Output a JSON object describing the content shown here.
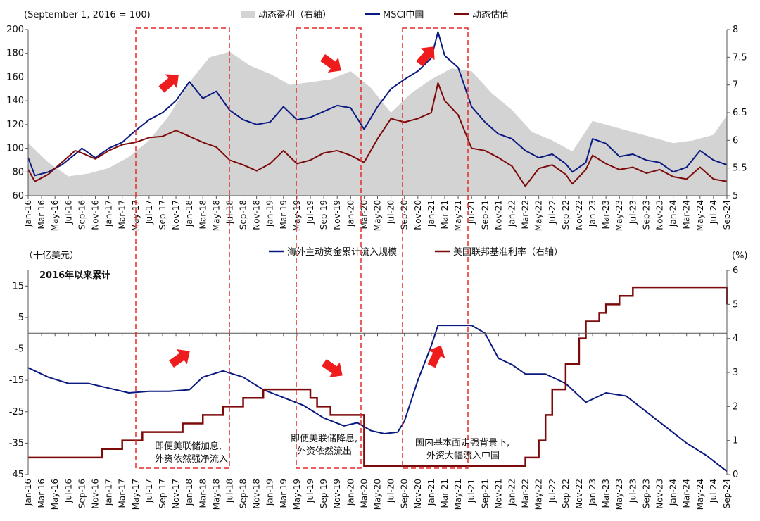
{
  "colors": {
    "earnings_fill": "#d3d3d3",
    "msci_line": "#0b1a80",
    "valuation_line": "#7d0a0a",
    "flow_line": "#0b1a80",
    "rate_line": "#7d0a0a",
    "highlight_box": "#e52a2a",
    "arrow": "#ee1c1c"
  },
  "icons": [
    "arrow-up-right-icon",
    "arrow-down-right-icon"
  ],
  "chart_data": [
    {
      "type": "line",
      "subtitle": "(September 1, 2016 = 100)",
      "legend_position": "top",
      "ylim": [
        60,
        200
      ],
      "y_ticks": [
        60,
        80,
        100,
        120,
        140,
        160,
        180,
        200
      ],
      "y2lim": [
        5,
        8
      ],
      "y2_ticks": [
        5,
        5.5,
        6,
        6.5,
        7,
        7.5,
        8
      ],
      "x_ticks": [
        "Jan-16",
        "Mar-16",
        "May-16",
        "Jul-16",
        "Sep-16",
        "Nov-16",
        "Jan-17",
        "Mar-17",
        "May-17",
        "Jul-17",
        "Sep-17",
        "Nov-17",
        "Jan-18",
        "Mar-18",
        "May-18",
        "Jul-18",
        "Sep-18",
        "Nov-18",
        "Jan-19",
        "Mar-19",
        "May-19",
        "Jul-19",
        "Sep-19",
        "Nov-19",
        "Jan-20",
        "Mar-20",
        "May-20",
        "Jul-20",
        "Sep-20",
        "Nov-20",
        "Jan-21",
        "Mar-21",
        "May-21",
        "Jul-21",
        "Sep-21",
        "Nov-21",
        "Jan-22",
        "Mar-22",
        "May-22",
        "Jul-22",
        "Sep-22",
        "Nov-22",
        "Jan-23",
        "Mar-23",
        "May-23",
        "Jul-23",
        "Sep-23",
        "Nov-23",
        "Jan-24",
        "Mar-24",
        "May-24",
        "Jul-24",
        "Sep-24"
      ],
      "grid": false,
      "series": [
        {
          "name": "动态盈利（右轴）",
          "kind": "area",
          "axis": "right",
          "x": [
            "2016-01",
            "2016-04",
            "2016-07",
            "2016-10",
            "2017-01",
            "2017-04",
            "2017-07",
            "2017-10",
            "2018-01",
            "2018-04",
            "2018-07",
            "2018-10",
            "2019-01",
            "2019-04",
            "2019-07",
            "2019-10",
            "2020-01",
            "2020-04",
            "2020-07",
            "2020-10",
            "2021-01",
            "2021-04",
            "2021-07",
            "2021-10",
            "2022-01",
            "2022-04",
            "2022-07",
            "2022-10",
            "2023-01",
            "2023-04",
            "2023-07",
            "2023-10",
            "2024-01",
            "2024-04",
            "2024-07",
            "2024-09"
          ],
          "values": [
            5.95,
            5.6,
            5.35,
            5.4,
            5.5,
            5.7,
            6.0,
            6.45,
            7.05,
            7.5,
            7.6,
            7.35,
            7.2,
            7.0,
            7.05,
            7.1,
            7.25,
            6.95,
            6.5,
            6.85,
            7.1,
            7.3,
            7.25,
            6.85,
            6.55,
            6.15,
            6.0,
            5.8,
            6.35,
            6.25,
            6.15,
            6.05,
            5.95,
            6.0,
            6.1,
            6.45
          ]
        },
        {
          "name": "MSCI中国",
          "kind": "line",
          "axis": "left",
          "x": [
            "2016-01",
            "2016-02",
            "2016-04",
            "2016-06",
            "2016-08",
            "2016-09",
            "2016-11",
            "2017-01",
            "2017-03",
            "2017-05",
            "2017-07",
            "2017-09",
            "2017-11",
            "2018-01",
            "2018-03",
            "2018-05",
            "2018-07",
            "2018-09",
            "2018-11",
            "2019-01",
            "2019-03",
            "2019-05",
            "2019-07",
            "2019-09",
            "2019-11",
            "2020-01",
            "2020-03",
            "2020-05",
            "2020-07",
            "2020-09",
            "2020-11",
            "2021-01",
            "2021-02",
            "2021-03",
            "2021-05",
            "2021-07",
            "2021-09",
            "2021-11",
            "2022-01",
            "2022-03",
            "2022-05",
            "2022-07",
            "2022-09",
            "2022-10",
            "2022-12",
            "2023-01",
            "2023-03",
            "2023-05",
            "2023-07",
            "2023-09",
            "2023-11",
            "2024-01",
            "2024-03",
            "2024-05",
            "2024-07",
            "2024-09"
          ],
          "values": [
            92,
            77,
            80,
            86,
            95,
            100,
            92,
            100,
            105,
            115,
            124,
            130,
            140,
            156,
            142,
            148,
            132,
            124,
            120,
            122,
            135,
            124,
            126,
            131,
            136,
            134,
            116,
            135,
            150,
            158,
            165,
            176,
            198,
            178,
            168,
            135,
            122,
            112,
            108,
            98,
            92,
            95,
            87,
            80,
            88,
            108,
            104,
            93,
            95,
            90,
            88,
            80,
            84,
            98,
            90,
            86
          ]
        },
        {
          "name": "动态估值",
          "kind": "line",
          "axis": "left",
          "x": [
            "2016-01",
            "2016-02",
            "2016-04",
            "2016-06",
            "2016-08",
            "2016-09",
            "2016-11",
            "2017-01",
            "2017-03",
            "2017-05",
            "2017-07",
            "2017-09",
            "2017-11",
            "2018-01",
            "2018-03",
            "2018-05",
            "2018-07",
            "2018-09",
            "2018-11",
            "2019-01",
            "2019-03",
            "2019-05",
            "2019-07",
            "2019-09",
            "2019-11",
            "2020-01",
            "2020-03",
            "2020-05",
            "2020-07",
            "2020-09",
            "2020-11",
            "2021-01",
            "2021-02",
            "2021-03",
            "2021-05",
            "2021-07",
            "2021-09",
            "2021-11",
            "2022-01",
            "2022-03",
            "2022-05",
            "2022-07",
            "2022-09",
            "2022-10",
            "2022-12",
            "2023-01",
            "2023-03",
            "2023-05",
            "2023-07",
            "2023-09",
            "2023-11",
            "2024-01",
            "2024-03",
            "2024-05",
            "2024-07",
            "2024-09"
          ],
          "values": [
            82,
            72,
            78,
            88,
            98,
            96,
            91,
            98,
            103,
            105,
            109,
            110,
            115,
            110,
            105,
            101,
            90,
            86,
            81,
            87,
            98,
            87,
            90,
            96,
            98,
            94,
            88,
            108,
            125,
            122,
            125,
            130,
            155,
            140,
            128,
            100,
            98,
            92,
            85,
            68,
            83,
            86,
            78,
            70,
            82,
            94,
            87,
            82,
            84,
            79,
            82,
            76,
            74,
            84,
            74,
            72
          ]
        }
      ]
    },
    {
      "type": "line",
      "subtitle": "2016年以来累计",
      "ylabel": "（十亿美元）",
      "y2label": "(%)",
      "legend_position": "top",
      "ylim": [
        -45,
        20
      ],
      "y_ticks": [
        -45,
        -35,
        -25,
        -15,
        -5,
        5,
        15
      ],
      "y2lim": [
        0,
        6
      ],
      "y2_ticks": [
        0,
        1,
        2,
        3,
        4,
        5,
        6
      ],
      "x_ticks": [
        "Jan-16",
        "Mar-16",
        "May-16",
        "Jul-16",
        "Sep-16",
        "Nov-16",
        "Jan-17",
        "Mar-17",
        "May-17",
        "Jul-17",
        "Sep-17",
        "Nov-17",
        "Jan-18",
        "Mar-18",
        "May-18",
        "Jul-18",
        "Sep-18",
        "Nov-18",
        "Jan-19",
        "Mar-19",
        "May-19",
        "Jul-19",
        "Sep-19",
        "Nov-19",
        "Jan-20",
        "Mar-20",
        "May-20",
        "Jul-20",
        "Sep-20",
        "Nov-20",
        "Jan-21",
        "Mar-21",
        "May-21",
        "Jul-21",
        "Sep-21",
        "Nov-21",
        "Jan-22",
        "Mar-22",
        "May-22",
        "Jul-22",
        "Sep-22",
        "Nov-22",
        "Jan-23",
        "Mar-23",
        "May-23",
        "Jul-23",
        "Sep-23",
        "Nov-23",
        "Jan-24",
        "Mar-24",
        "May-24",
        "Jul-24",
        "Sep-24"
      ],
      "grid": false,
      "series": [
        {
          "name": "海外主动资金累计流入规模",
          "kind": "line",
          "axis": "left",
          "x": [
            "2016-01",
            "2016-04",
            "2016-07",
            "2016-10",
            "2017-01",
            "2017-04",
            "2017-07",
            "2017-10",
            "2018-01",
            "2018-03",
            "2018-06",
            "2018-09",
            "2018-12",
            "2019-03",
            "2019-06",
            "2019-09",
            "2019-12",
            "2020-02",
            "2020-04",
            "2020-06",
            "2020-08",
            "2020-09",
            "2020-11",
            "2021-01",
            "2021-02",
            "2021-04",
            "2021-07",
            "2021-09",
            "2021-11",
            "2022-01",
            "2022-03",
            "2022-06",
            "2022-09",
            "2022-12",
            "2023-03",
            "2023-06",
            "2023-09",
            "2023-12",
            "2024-03",
            "2024-06",
            "2024-09"
          ],
          "values": [
            -11,
            -14,
            -16,
            -16,
            -17.5,
            -19,
            -18.5,
            -18.5,
            -18,
            -14,
            -12,
            -14,
            -18,
            -20.5,
            -23,
            -27,
            -29.5,
            -28.5,
            -31,
            -32,
            -31.5,
            -28,
            -15,
            -4,
            2.5,
            2.5,
            2.5,
            0,
            -8,
            -10,
            -13,
            -13,
            -16,
            -22,
            -19,
            -20,
            -25,
            -30,
            -35,
            -39,
            -44
          ]
        },
        {
          "name": "美国联邦基准利率（右轴）",
          "kind": "step",
          "axis": "right",
          "x": [
            "2016-01",
            "2016-12",
            "2017-03",
            "2017-06",
            "2017-12",
            "2018-03",
            "2018-06",
            "2018-09",
            "2018-12",
            "2019-07",
            "2019-08",
            "2019-10",
            "2020-03",
            "2022-03",
            "2022-05",
            "2022-06",
            "2022-07",
            "2022-09",
            "2022-11",
            "2022-12",
            "2023-02",
            "2023-03",
            "2023-05",
            "2023-07",
            "2024-09"
          ],
          "values": [
            0.5,
            0.75,
            1.0,
            1.25,
            1.5,
            1.75,
            2.0,
            2.25,
            2.5,
            2.25,
            2.0,
            1.75,
            0.25,
            0.5,
            1.0,
            1.75,
            2.5,
            3.25,
            4.0,
            4.5,
            4.75,
            5.0,
            5.25,
            5.5,
            5.0
          ]
        }
      ]
    }
  ],
  "top_legend": {
    "earnings": "动态盈利（右轴）",
    "msci": "MSCI中国",
    "valuation": "动态估值"
  },
  "bottom_legend": {
    "flow": "海外主动资金累计流入规模",
    "rate": "美国联邦基准利率（右轴）"
  },
  "annotations": {
    "box1_line1": "即便美联储加息,",
    "box1_line2": "外资依然强净流入",
    "box2_line1": "即便美联储降息,",
    "box2_line2": "外资依然流出",
    "box3_line1": "国内基本面走强背景下,",
    "box3_line2": "外资大幅流入中国"
  }
}
